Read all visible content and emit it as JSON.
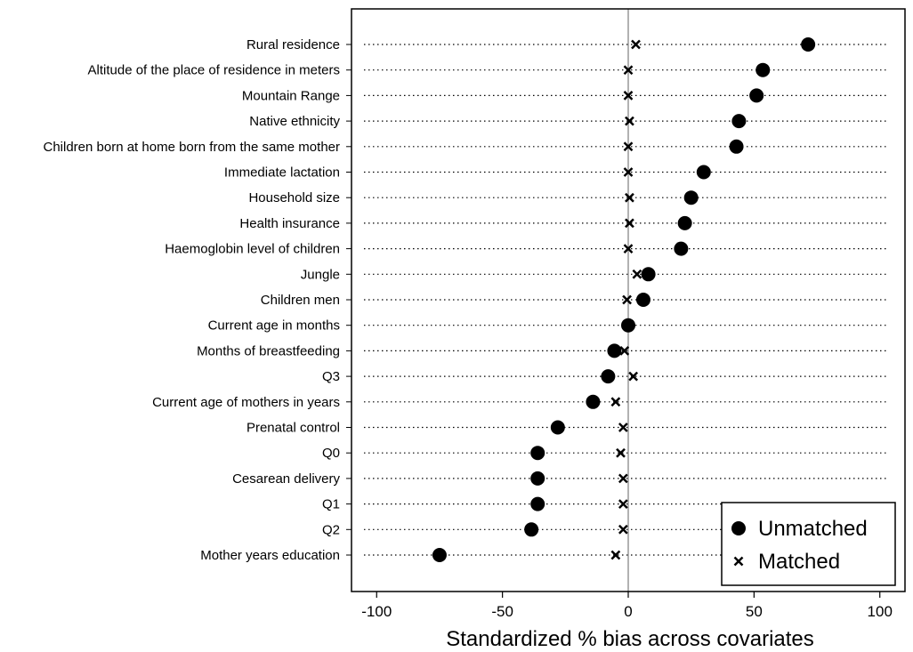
{
  "chart_data": {
    "type": "scatter",
    "xlabel": "Standardized % bias across covariates",
    "xlim": [
      -110,
      110
    ],
    "xticks": [
      -100,
      -50,
      0,
      50,
      100
    ],
    "xtick_labels": [
      "-100",
      "-50",
      "0",
      "50",
      "100"
    ],
    "categories": [
      "Rural residence",
      "Altitude of the place of residence in meters",
      "Mountain Range",
      "Native ethnicity",
      "Children born at home born from the same mother",
      "Immediate lactation",
      "Household size",
      "Health insurance",
      "Haemoglobin level of children",
      "Jungle",
      "Children men",
      "Current age in months",
      "Months of breastfeeding",
      "Q3",
      "Current age of mothers in years",
      "Prenatal control",
      "Q0",
      "Cesarean delivery",
      "Q1",
      "Q2",
      "Mother years education"
    ],
    "series": [
      {
        "name": "Unmatched",
        "marker": "circle",
        "values": [
          71.5,
          53.5,
          51,
          44,
          43,
          30,
          25,
          22.5,
          21,
          8,
          6,
          0,
          -5.5,
          -8,
          -14,
          -28,
          -36,
          -36,
          -36,
          -38.5,
          -75
        ]
      },
      {
        "name": "Matched",
        "marker": "x",
        "values": [
          3,
          0,
          0,
          0.5,
          0,
          0,
          0.5,
          0.5,
          0,
          3.5,
          -0.5,
          0,
          -1.5,
          2,
          -5,
          -2,
          -3,
          -2,
          -2,
          -2,
          -5
        ]
      }
    ],
    "zero_line": 0,
    "legend_position": "bottom-right",
    "grid": "horizontal dotted",
    "colors": {
      "marker": "#000000",
      "zero_line": "#999999",
      "axis": "#000000",
      "background": "#ffffff"
    }
  }
}
